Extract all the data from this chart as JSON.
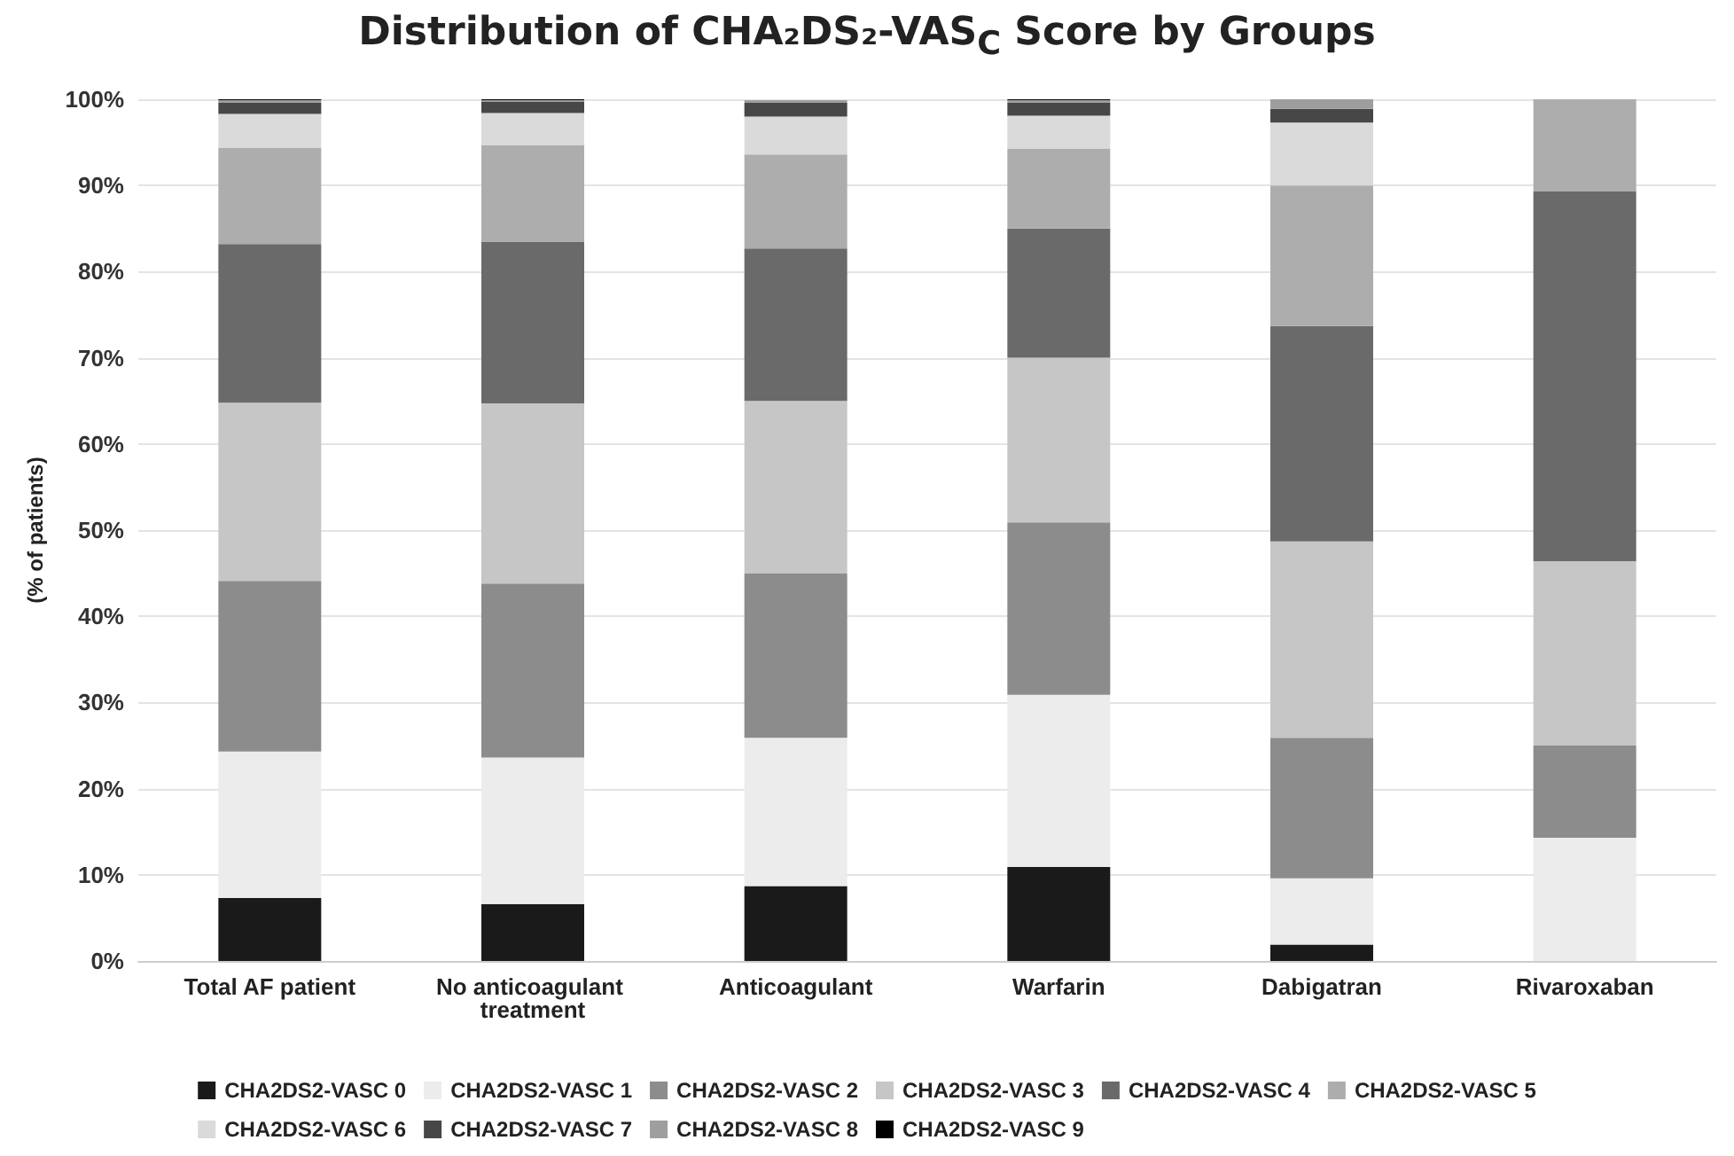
{
  "chart_data": {
    "type": "bar",
    "stacked": true,
    "title": "Distribution of CHA₂DS₂-VAS$_{C}$ Score by Groups",
    "ylabel": "(% of patients)",
    "categories": [
      "Total AF patient",
      "No anticoagulant treatment",
      "Anticoagulant",
      "Warfarin",
      "Dabigatran",
      "Rivaroxaban"
    ],
    "series": [
      {
        "name": "CHA2DS2-VASC 0",
        "color": "#1a1a1a",
        "values": [
          7.3,
          6.6,
          8.7,
          10.9,
          1.9,
          null
        ]
      },
      {
        "name": "CHA2DS2-VASC 1",
        "color": "#ececec",
        "values": [
          17.0,
          17.0,
          17.2,
          20.0,
          7.7,
          14.3
        ]
      },
      {
        "name": "CHA2DS2-VASC 2",
        "color": "#8c8c8c",
        "values": [
          19.8,
          20.2,
          19.1,
          20.0,
          16.3,
          10.7
        ]
      },
      {
        "name": "CHA2DS2-VASC 3",
        "color": "#c6c6c6",
        "values": [
          20.7,
          20.9,
          20.0,
          19.1,
          22.8,
          21.4
        ]
      },
      {
        "name": "CHA2DS2-VASC 4",
        "color": "#6a6a6a",
        "values": [
          18.4,
          18.8,
          17.7,
          15.0,
          25.0,
          42.9
        ]
      },
      {
        "name": "CHA2DS2-VASC 5",
        "color": "#adadad",
        "values": [
          11.2,
          11.2,
          10.9,
          9.3,
          16.3,
          10.7
        ]
      },
      {
        "name": "CHA2DS2-VASC 6",
        "color": "#dadada",
        "values": [
          3.9,
          3.7,
          4.4,
          3.8,
          7.3,
          null
        ]
      },
      {
        "name": "CHA2DS2-VASC 7",
        "color": "#474747",
        "values": [
          1.3,
          1.3,
          1.6,
          1.5,
          1.6,
          null
        ]
      },
      {
        "name": "CHA2DS2-VASC 8",
        "color": "#9e9e9e",
        "values": [
          0.3,
          0.2,
          0.3,
          0.3,
          1.1,
          null
        ]
      },
      {
        "name": "CHA2DS2-VASC 9",
        "color": "#000000",
        "values": [
          0.1,
          0.1,
          null,
          0.1,
          null,
          null
        ]
      }
    ],
    "ylim": [
      0,
      100
    ],
    "yticks": [
      {
        "value": 0,
        "label": "0%"
      },
      {
        "value": 10,
        "label": "10%"
      },
      {
        "value": 20,
        "label": "20%"
      },
      {
        "value": 30,
        "label": "30%"
      },
      {
        "value": 40,
        "label": "40%"
      },
      {
        "value": 50,
        "label": "50%"
      },
      {
        "value": 60,
        "label": "60%"
      },
      {
        "value": 70,
        "label": "70%"
      },
      {
        "value": 80,
        "label": "80%"
      },
      {
        "value": 90,
        "label": "90%"
      },
      {
        "value": 100,
        "label": "100%"
      }
    ],
    "grid": "y",
    "legend": "bottom"
  }
}
